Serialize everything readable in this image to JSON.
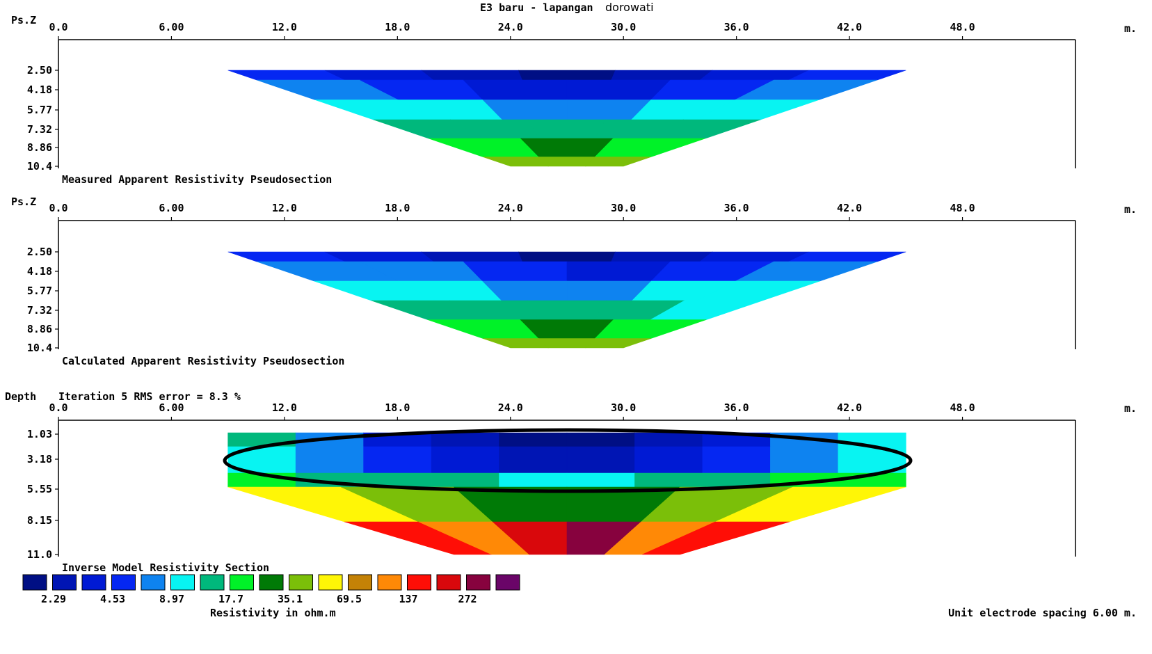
{
  "title": "E3 baru - lapangan",
  "title_suffix": "dorowati",
  "colors": {
    "scale": [
      "#000f84",
      "#0015b4",
      "#001ad4",
      "#0527f2",
      "#0e83f0",
      "#08f4f2",
      "#00b87c",
      "#00f228",
      "#007a06",
      "#7bbf09",
      "#fff606",
      "#c48206",
      "#ff8906",
      "#ff0e06",
      "#d9080c",
      "#87023e",
      "#6a0568"
    ]
  },
  "chart_data": [
    {
      "type": "heatmap",
      "panel": "measured",
      "ylabel": "Ps.Z",
      "caption": "Measured Apparent Resistivity Pseudosection",
      "unit_suffix": "m.",
      "x_ticks": [
        "0.0",
        "6.00",
        "12.0",
        "18.0",
        "24.0",
        "30.0",
        "36.0",
        "42.0",
        "48.0"
      ],
      "y_ticks": [
        "2.50",
        "4.18",
        "5.77",
        "7.32",
        "8.86",
        "10.4"
      ],
      "x_range": [
        0,
        54
      ],
      "levels": [
        {
          "level": 1,
          "depth": 2.5,
          "x": [
            9,
            15,
            21,
            27,
            33,
            39,
            45
          ],
          "color_index": [
            3,
            2,
            1,
            0,
            1,
            2,
            3
          ]
        },
        {
          "level": 2,
          "depth": 4.18,
          "x": [
            10.5,
            16.5,
            22.5,
            28.5,
            34.5,
            40.5
          ],
          "color_index": [
            4,
            3,
            2,
            2,
            3,
            4
          ]
        },
        {
          "level": 3,
          "depth": 5.77,
          "x": [
            12,
            18,
            24,
            30,
            36,
            42
          ],
          "color_index": [
            5,
            5,
            4,
            4,
            5,
            5
          ]
        },
        {
          "level": 4,
          "depth": 7.32,
          "x": [
            13.5,
            19.5,
            25.5,
            31.5,
            37.5
          ],
          "color_index": [
            6,
            6,
            6,
            6,
            6
          ]
        },
        {
          "level": 5,
          "depth": 8.86,
          "x": [
            21,
            27,
            33
          ],
          "color_index": [
            7,
            8,
            7
          ]
        },
        {
          "level": 6,
          "depth": 10.4,
          "x": [
            24,
            27,
            30
          ],
          "color_index": [
            9,
            9,
            9
          ]
        }
      ]
    },
    {
      "type": "heatmap",
      "panel": "calculated",
      "ylabel": "Ps.Z",
      "caption": "Calculated Apparent Resistivity Pseudosection",
      "unit_suffix": "m.",
      "x_ticks": [
        "0.0",
        "6.00",
        "12.0",
        "18.0",
        "24.0",
        "30.0",
        "36.0",
        "42.0",
        "48.0"
      ],
      "y_ticks": [
        "2.50",
        "4.18",
        "5.77",
        "7.32",
        "8.86",
        "10.4"
      ],
      "x_range": [
        0,
        54
      ],
      "levels": [
        {
          "level": 1,
          "depth": 2.5,
          "x": [
            9,
            15,
            21,
            27,
            33,
            39,
            45
          ],
          "color_index": [
            3,
            2,
            1,
            0,
            1,
            2,
            3
          ]
        },
        {
          "level": 2,
          "depth": 4.18,
          "x": [
            10.5,
            16.5,
            22.5,
            28.5,
            34.5,
            40.5
          ],
          "color_index": [
            4,
            4,
            3,
            2,
            3,
            4
          ]
        },
        {
          "level": 3,
          "depth": 5.77,
          "x": [
            12,
            18,
            24,
            30,
            36,
            42
          ],
          "color_index": [
            5,
            5,
            4,
            4,
            5,
            5
          ]
        },
        {
          "level": 4,
          "depth": 7.32,
          "x": [
            13.5,
            19.5,
            25.5,
            31.5,
            37.5
          ],
          "color_index": [
            6,
            6,
            6,
            6,
            5
          ]
        },
        {
          "level": 5,
          "depth": 8.86,
          "x": [
            21,
            27,
            33
          ],
          "color_index": [
            7,
            8,
            7
          ]
        },
        {
          "level": 6,
          "depth": 10.4,
          "x": [
            24,
            27,
            30
          ],
          "color_index": [
            9,
            9,
            9
          ]
        }
      ]
    },
    {
      "type": "heatmap",
      "panel": "inverse",
      "ylabel": "Depth",
      "subtitle": "Iteration 5 RMS error = 8.3 %",
      "caption": "Inverse Model Resistivity Section",
      "unit_suffix": "m.",
      "x_ticks": [
        "0.0",
        "6.00",
        "12.0",
        "18.0",
        "24.0",
        "30.0",
        "36.0",
        "42.0",
        "48.0"
      ],
      "y_ticks": [
        "1.03",
        "3.18",
        "5.55",
        "8.15",
        "11.0"
      ],
      "x_range": [
        0,
        54
      ],
      "layers": [
        {
          "depth": 1.03,
          "color_index": [
            6,
            4,
            2,
            1,
            0,
            0,
            1,
            2,
            4,
            5
          ]
        },
        {
          "depth": 3.18,
          "color_index": [
            5,
            4,
            3,
            2,
            1,
            1,
            2,
            3,
            4,
            5
          ]
        },
        {
          "depth": 5.55,
          "color_index": [
            7,
            6,
            6,
            6,
            5,
            5,
            6,
            6,
            7,
            7
          ]
        },
        {
          "depth": 8.15,
          "color_index": [
            10,
            9,
            8,
            8,
            9,
            10
          ]
        },
        {
          "depth": 11.0,
          "color_index": [
            13,
            12,
            14,
            15,
            12,
            13
          ]
        }
      ],
      "highlight": "ellipse around the shallow low-resistivity zone"
    }
  ],
  "legend": {
    "labels": [
      "2.29",
      "4.53",
      "8.97",
      "17.7",
      "35.1",
      "69.5",
      "137",
      "272"
    ],
    "caption": "Resistivity in ohm.m"
  },
  "footer": "Unit electrode spacing 6.00 m."
}
